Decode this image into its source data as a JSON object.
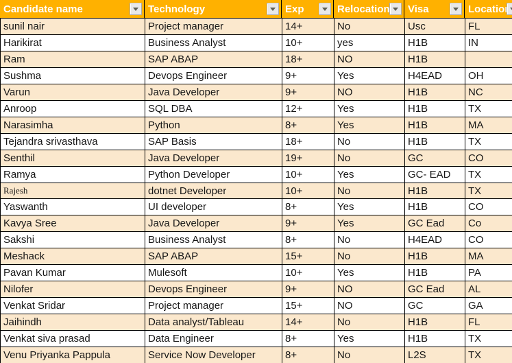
{
  "table": {
    "columns": [
      {
        "label": "Candidate name",
        "key": "candidate-name"
      },
      {
        "label": "Technology",
        "key": "technology"
      },
      {
        "label": "Exp",
        "key": "exp"
      },
      {
        "label": "Relocation",
        "key": "relocation"
      },
      {
        "label": "Visa",
        "key": "visa"
      },
      {
        "label": "Location",
        "key": "location"
      }
    ],
    "rows": [
      {
        "cells": [
          "sunil nair",
          "Project manager",
          "14+",
          "No",
          "Usc",
          "FL"
        ],
        "shaded": true
      },
      {
        "cells": [
          "Harikirat",
          "Business Analyst",
          "10+",
          "yes",
          "H1B",
          "IN"
        ],
        "shaded": false
      },
      {
        "cells": [
          "Ram",
          "SAP ABAP",
          "18+",
          "NO",
          "H1B",
          ""
        ],
        "shaded": true
      },
      {
        "cells": [
          "Sushma",
          "Devops Engineer",
          "9+",
          "Yes",
          "H4EAD",
          "OH"
        ],
        "shaded": false
      },
      {
        "cells": [
          "Varun",
          "Java Developer",
          "9+",
          "NO",
          "H1B",
          "NC"
        ],
        "shaded": true
      },
      {
        "cells": [
          "Anroop",
          "SQL DBA",
          "12+",
          "Yes",
          "H1B",
          "TX"
        ],
        "shaded": false
      },
      {
        "cells": [
          "Narasimha",
          "Python",
          "8+",
          "Yes",
          "H1B",
          "MA"
        ],
        "shaded": true
      },
      {
        "cells": [
          "Tejandra srivasthava",
          "SAP Basis",
          "18+",
          "No",
          "H1B",
          "TX"
        ],
        "shaded": false
      },
      {
        "cells": [
          "Senthil",
          "Java Developer",
          "19+",
          "No",
          "GC",
          "CO"
        ],
        "shaded": true
      },
      {
        "cells": [
          "Ramya",
          "Python Developer",
          "10+",
          "Yes",
          "GC- EAD",
          "TX"
        ],
        "shaded": false
      },
      {
        "cells": [
          "Rajesh",
          "dotnet Developer",
          "10+",
          "No",
          "H1B",
          "TX"
        ],
        "shaded": true,
        "name_serif": true
      },
      {
        "cells": [
          "Yaswanth",
          "UI developer",
          "8+",
          "Yes",
          "H1B",
          "CO"
        ],
        "shaded": false
      },
      {
        "cells": [
          "Kavya Sree",
          "Java Developer",
          "9+",
          "Yes",
          "GC Ead",
          "Co"
        ],
        "shaded": true
      },
      {
        "cells": [
          "Sakshi",
          "Business Analyst",
          "8+",
          "No",
          "H4EAD",
          "CO"
        ],
        "shaded": false
      },
      {
        "cells": [
          "Meshack",
          "SAP ABAP",
          "15+",
          "No",
          "H1B",
          "MA"
        ],
        "shaded": true
      },
      {
        "cells": [
          "Pavan Kumar",
          "Mulesoft",
          "10+",
          "Yes",
          "H1B",
          "PA"
        ],
        "shaded": false
      },
      {
        "cells": [
          "Nilofer",
          "Devops Engineer",
          "9+",
          "NO",
          "GC Ead",
          "AL"
        ],
        "shaded": true
      },
      {
        "cells": [
          "Venkat Sridar",
          "Project manager",
          "15+",
          "NO",
          "GC",
          "GA"
        ],
        "shaded": false
      },
      {
        "cells": [
          "Jaihindh",
          "Data analyst/Tableau",
          "14+",
          "No",
          "H1B",
          "FL"
        ],
        "shaded": true
      },
      {
        "cells": [
          "Venkat siva prasad",
          "Data Engineer",
          "8+",
          "Yes",
          "H1B",
          "TX"
        ],
        "shaded": false
      },
      {
        "cells": [
          "Venu Priyanka Pappula",
          "Service Now Developer",
          "8+",
          "No",
          "L2S",
          "TX"
        ],
        "shaded": true
      }
    ]
  },
  "icons": {
    "filter_dropdown": "chevron-down-icon"
  },
  "colors": {
    "header_bg": "#FFB100",
    "header_text": "#FFFFFF",
    "row_shaded_bg": "#FBE8CD",
    "row_plain_bg": "#FFFFFF",
    "grid_line": "#000000",
    "cell_text": "#161616",
    "filter_button_bg": "#E8E8E8",
    "filter_button_border": "#ABABAB",
    "filter_icon": "#5F5F52"
  }
}
